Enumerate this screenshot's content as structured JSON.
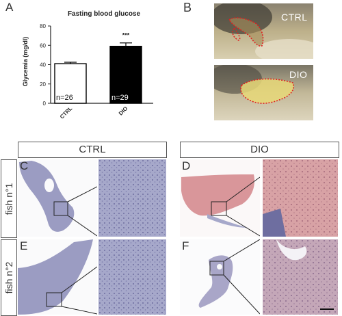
{
  "panel_a": {
    "letter": "A",
    "chart_data": {
      "type": "bar",
      "title": "Fasting blood glucose",
      "ylabel": "Glycemia (mg/dl)",
      "xlabel": "",
      "ylim": [
        0,
        80
      ],
      "yticks": [
        "0",
        "20",
        "40",
        "60",
        "80"
      ],
      "categories": [
        "CTRL",
        "DIO"
      ],
      "values": [
        41,
        59
      ],
      "errors": [
        1.5,
        3.5
      ],
      "bar_colors": [
        "#ffffff",
        "#000000"
      ],
      "n_labels": [
        "n=26",
        "n=29"
      ],
      "significance": "***"
    }
  },
  "panel_b": {
    "letter": "B",
    "photos": [
      {
        "label": "CTRL"
      },
      {
        "label": "DIO"
      }
    ]
  },
  "histology": {
    "column_labels": [
      "CTRL",
      "DIO"
    ],
    "row_labels": [
      "fish n°1",
      "fish n°2"
    ],
    "panel_letters": [
      "C",
      "D",
      "E",
      "F"
    ]
  }
}
